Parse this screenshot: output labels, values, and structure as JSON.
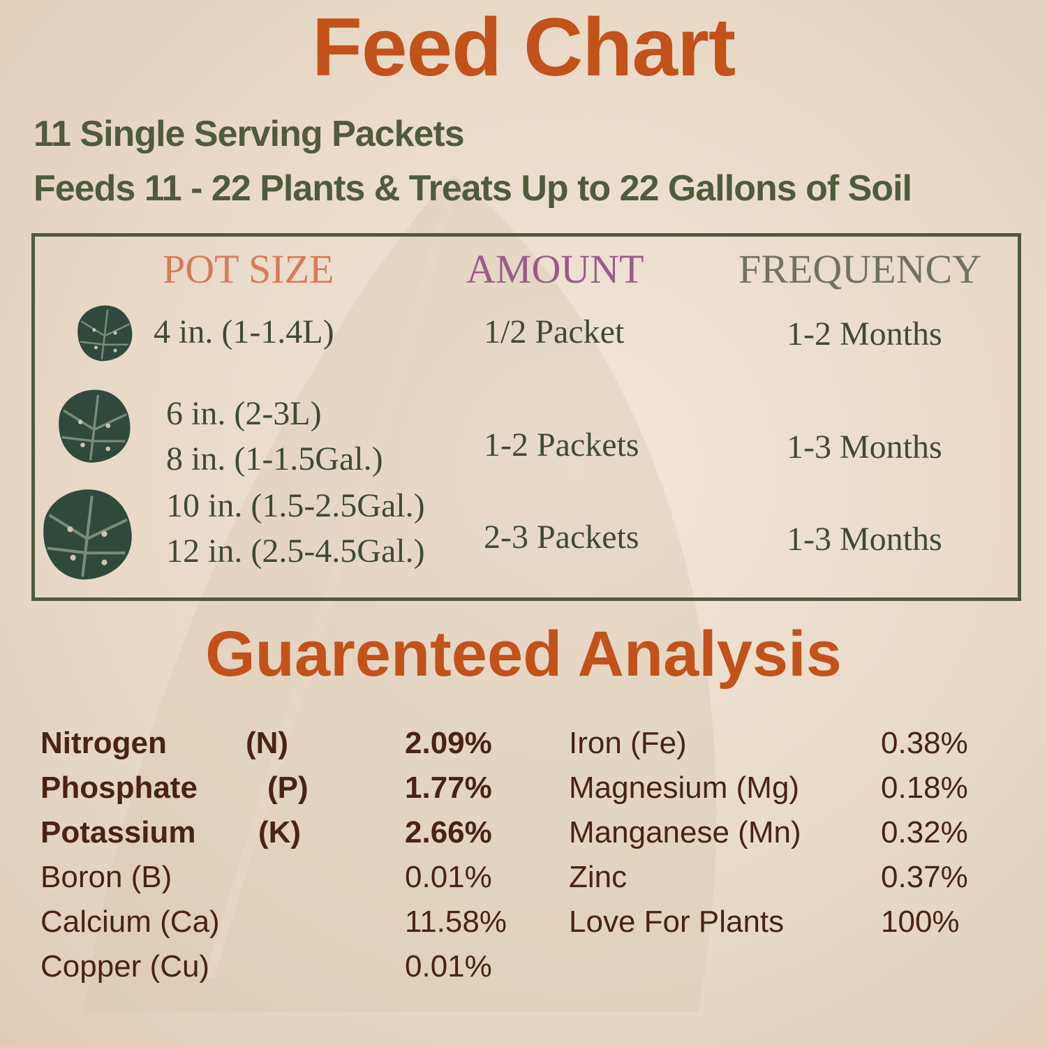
{
  "header": {
    "title": "Feed Chart",
    "lines": [
      "11 Single Serving Packets",
      "Feeds 11 - 22 Plants & Treats Up to 22 Gallons of Soil"
    ]
  },
  "table": {
    "headers": [
      "POT SIZE",
      "AMOUNT",
      "FREQUENCY"
    ],
    "rows": [
      {
        "pot": [
          "4 in. (1-1.4L)"
        ],
        "amount": "1/2 Packet",
        "frequency": "1-2 Months"
      },
      {
        "pot": [
          "6 in. (2-3L)",
          "8 in. (1-1.5Gal.)"
        ],
        "amount": "1-2 Packets",
        "frequency": "1-3 Months"
      },
      {
        "pot": [
          "10 in. (1.5-2.5Gal.)",
          "12 in. (2.5-4.5Gal.)"
        ],
        "amount": "2-3 Packets",
        "frequency": "1-3 Months"
      }
    ]
  },
  "analysis": {
    "title": "Guarenteed Analysis",
    "primary": [
      [
        "Nitrogen",
        "(N)",
        "2.09%"
      ],
      [
        "Phosphate",
        "(P)",
        "1.77%"
      ],
      [
        "Potassium",
        "(K)",
        "2.66%"
      ]
    ],
    "left": [
      [
        "Boron (B)",
        "0.01%"
      ],
      [
        "Calcium (Ca)",
        "11.58%"
      ],
      [
        "Copper (Cu)",
        "0.01%"
      ]
    ],
    "right": [
      [
        "Iron (Fe)",
        "0.38%"
      ],
      [
        "Magnesium (Mg)",
        "0.18%"
      ],
      [
        "Manganese (Mn)",
        "0.32%"
      ],
      [
        "Zinc",
        "0.37%"
      ],
      [
        "Love For Plants",
        "100%"
      ]
    ]
  }
}
